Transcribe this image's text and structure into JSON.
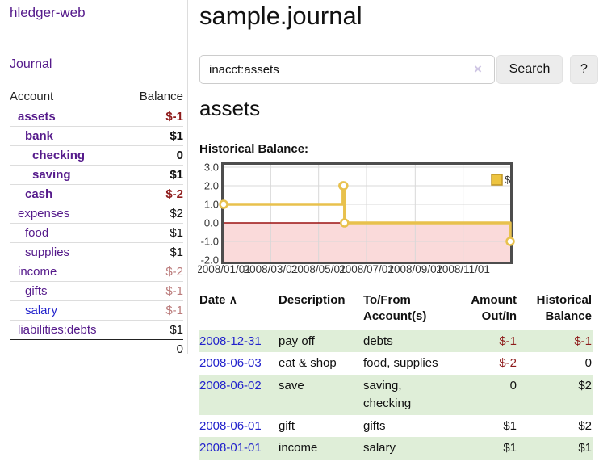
{
  "app": {
    "title": "hledger-web"
  },
  "sidebar": {
    "journal_link": "Journal",
    "table": {
      "headers": {
        "account": "Account",
        "balance": "Balance"
      },
      "rows": [
        {
          "label": "assets",
          "indent": 1,
          "bold": true,
          "color": "visited",
          "balance": "$-1",
          "balance_class": "neg-strong"
        },
        {
          "label": "bank",
          "indent": 2,
          "bold": true,
          "color": "visited",
          "balance": "$1",
          "balance_class": "pos"
        },
        {
          "label": "checking",
          "indent": 3,
          "bold": true,
          "color": "visited",
          "balance": "0",
          "balance_class": "pos"
        },
        {
          "label": "saving",
          "indent": 3,
          "bold": true,
          "color": "visited",
          "balance": "$1",
          "balance_class": "pos"
        },
        {
          "label": "cash",
          "indent": 2,
          "bold": true,
          "color": "visited",
          "balance": "$-2",
          "balance_class": "neg-strong"
        },
        {
          "label": "expenses",
          "indent": 1,
          "bold": false,
          "color": "visited",
          "balance": "$2",
          "balance_class": "pos"
        },
        {
          "label": "food",
          "indent": 2,
          "bold": false,
          "color": "visited",
          "balance": "$1",
          "balance_class": "pos"
        },
        {
          "label": "supplies",
          "indent": 2,
          "bold": false,
          "color": "visited",
          "balance": "$1",
          "balance_class": "pos"
        },
        {
          "label": "income",
          "indent": 1,
          "bold": false,
          "color": "visited",
          "balance": "$-2",
          "balance_class": "neg-soft"
        },
        {
          "label": "gifts",
          "indent": 2,
          "bold": false,
          "color": "visited",
          "balance": "$-1",
          "balance_class": "neg-soft"
        },
        {
          "label": "salary",
          "indent": 2,
          "bold": false,
          "color": "link",
          "balance": "$-1",
          "balance_class": "neg-soft"
        },
        {
          "label": "liabilities:debts",
          "indent": 1,
          "bold": false,
          "color": "visited",
          "balance": "$1",
          "balance_class": "pos"
        }
      ],
      "total": "0"
    }
  },
  "main": {
    "title": "sample.journal",
    "search": {
      "value": "inacct:assets",
      "clear_icon": "×",
      "search_button": "Search",
      "help_button": "?"
    },
    "account_heading": "assets",
    "chart_label": "Historical Balance:"
  },
  "chart_data": {
    "type": "line",
    "title": "Historical Balance",
    "step": true,
    "series": [
      {
        "name": "$",
        "points": [
          [
            "2008-01-01",
            1
          ],
          [
            "2008-06-01",
            2
          ],
          [
            "2008-06-02",
            2
          ],
          [
            "2008-06-03",
            0
          ],
          [
            "2008-12-31",
            -1
          ]
        ]
      }
    ],
    "x_range": [
      "2008-01-01",
      "2008-12-31"
    ],
    "x_ticks": [
      "2008/01/01",
      "2008/03/01",
      "2008/05/01",
      "2008/07/01",
      "2008/09/01",
      "2008/11/01"
    ],
    "y_ticks": [
      3.0,
      2.0,
      1.0,
      0.0,
      -1.0,
      -2.0
    ],
    "ylim": [
      -2.0,
      3.0
    ],
    "legend": {
      "label": "$",
      "position": "top-right"
    },
    "grid": true,
    "colors": {
      "line": "#e8c14d",
      "marker_fill": "#ffffff",
      "below_zero_fill": "#fadada",
      "zero_line": "#9b1111",
      "grid": "#d8d8d8",
      "border": "#4d4d4d",
      "legend_fill": "#edc440",
      "legend_border": "#bd9427",
      "tick_text": "#333333"
    }
  },
  "register": {
    "headers": {
      "date": "Date",
      "sort_indicator": "∧",
      "description": "Description",
      "accounts": "To/From Account(s)",
      "amount": "Amount Out/In",
      "balance": "Historical Balance"
    },
    "rows": [
      {
        "date": "2008-12-31",
        "description": "pay off",
        "accounts": "debts",
        "amount": "$-1",
        "amount_neg": true,
        "balance": "$-1",
        "balance_neg": true,
        "shade": "green"
      },
      {
        "date": "2008-06-03",
        "description": "eat & shop",
        "accounts": "food, supplies",
        "amount": "$-2",
        "amount_neg": true,
        "balance": "0",
        "balance_neg": false,
        "shade": "white"
      },
      {
        "date": "2008-06-02",
        "description": "save",
        "accounts": "saving, checking",
        "amount": "0",
        "amount_neg": false,
        "balance": "$2",
        "balance_neg": false,
        "shade": "green"
      },
      {
        "date": "2008-06-01",
        "description": "gift",
        "accounts": "gifts",
        "amount": "$1",
        "amount_neg": false,
        "balance": "$2",
        "balance_neg": false,
        "shade": "white"
      },
      {
        "date": "2008-01-01",
        "description": "income",
        "accounts": "salary",
        "amount": "$1",
        "amount_neg": false,
        "balance": "$1",
        "balance_neg": false,
        "shade": "green"
      }
    ]
  }
}
